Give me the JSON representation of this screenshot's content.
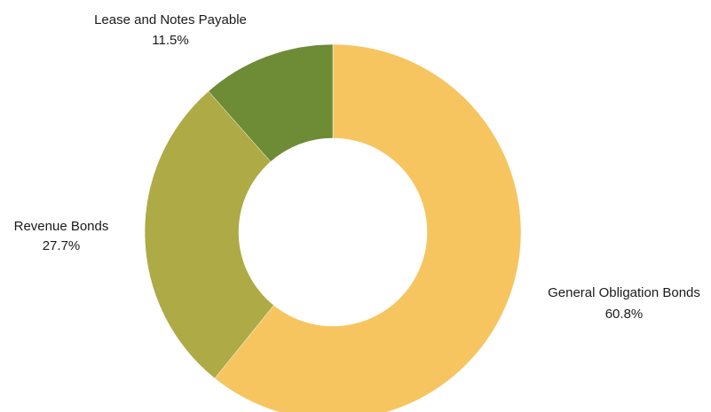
{
  "chart_data": {
    "type": "pie",
    "donut": true,
    "title": "",
    "slices": [
      {
        "label": "General Obligation Bonds",
        "value": 60.8,
        "value_label": "60.8%",
        "color": "#F6C560"
      },
      {
        "label": "Revenue Bonds",
        "value": 27.7,
        "value_label": "27.7%",
        "color": "#AEAA46"
      },
      {
        "label": "Lease and Notes Payable",
        "value": 11.5,
        "value_label": "11.5%",
        "color": "#6E8B35"
      }
    ],
    "legend": "none"
  }
}
